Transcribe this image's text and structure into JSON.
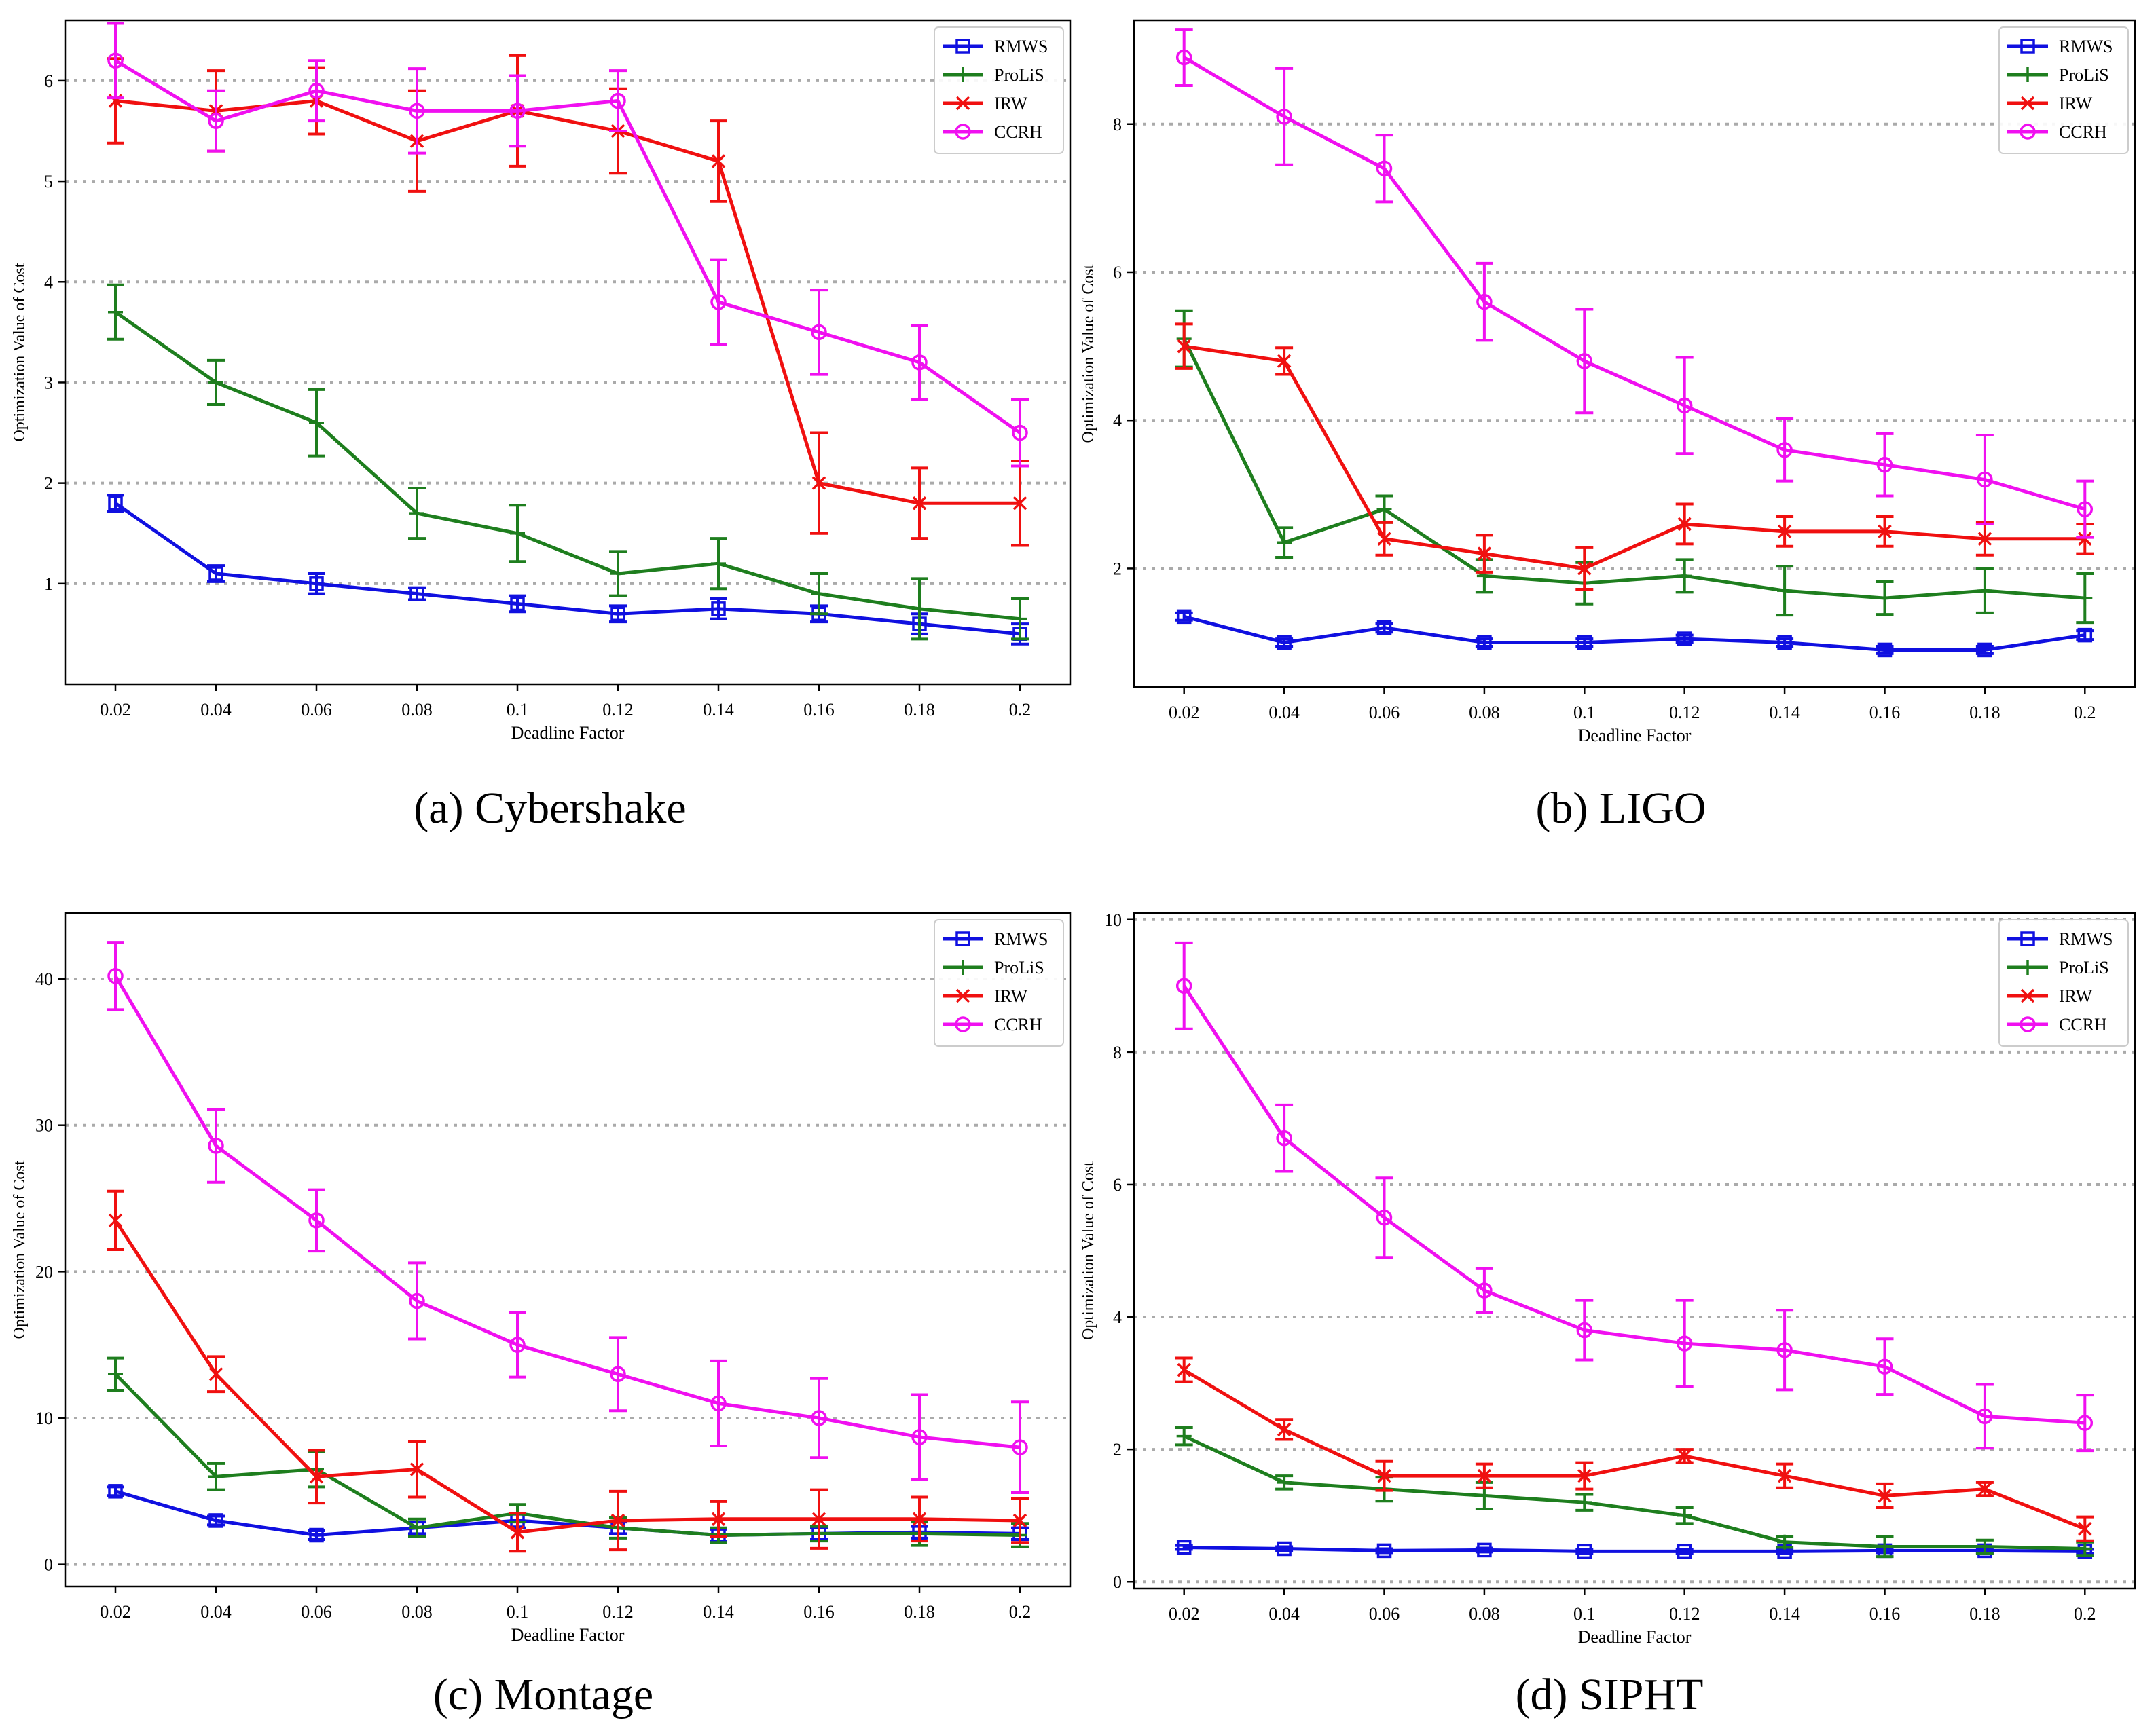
{
  "colors": {
    "RMWS": "#1010e0",
    "ProLiS": "#1e7e1e",
    "IRW": "#f01010",
    "CCRH": "#f010f0",
    "grid": "#aaaaaa",
    "axis": "#000000"
  },
  "chart_data": [
    {
      "type": "line",
      "panel_letter": "(a)",
      "panel_name": "Cybershake",
      "xlabel": "Deadline Factor",
      "ylabel": "Optimization Value of Cost",
      "xlim": [
        0.01,
        0.21
      ],
      "ylim": [
        0.0,
        6.6
      ],
      "grid": "y, dotted",
      "legend": "top-right",
      "categories": [
        0.02,
        0.04,
        0.06,
        0.08,
        0.1,
        0.12,
        0.14,
        0.16,
        0.18,
        0.2
      ],
      "x_tick_labels": [
        "0.02",
        "0.04",
        "0.06",
        "0.08",
        "0.1",
        "0.12",
        "0.14",
        "0.16",
        "0.18",
        "0.2"
      ],
      "yticks": [
        1,
        2,
        3,
        4,
        5,
        6
      ],
      "y_tick_labels": [
        "1",
        "2",
        "3",
        "4",
        "5",
        "6"
      ],
      "series": [
        {
          "name": "RMWS",
          "marker": "square",
          "values": [
            1.8,
            1.1,
            1.0,
            0.9,
            0.8,
            0.7,
            0.75,
            0.7,
            0.6,
            0.5
          ],
          "errors": [
            0.08,
            0.08,
            0.1,
            0.06,
            0.08,
            0.08,
            0.1,
            0.08,
            0.1,
            0.1
          ]
        },
        {
          "name": "ProLiS",
          "marker": "plus",
          "values": [
            3.7,
            3.0,
            2.6,
            1.7,
            1.5,
            1.1,
            1.2,
            0.9,
            0.75,
            0.65
          ],
          "errors": [
            0.27,
            0.22,
            0.33,
            0.25,
            0.28,
            0.22,
            0.25,
            0.2,
            0.3,
            0.2
          ]
        },
        {
          "name": "IRW",
          "marker": "x",
          "values": [
            5.8,
            5.7,
            5.8,
            5.4,
            5.7,
            5.5,
            5.2,
            2.0,
            1.8,
            1.8
          ],
          "errors": [
            0.42,
            0.4,
            0.33,
            0.5,
            0.55,
            0.42,
            0.4,
            0.5,
            0.35,
            0.42
          ]
        },
        {
          "name": "CCRH",
          "marker": "circle",
          "values": [
            6.2,
            5.6,
            5.9,
            5.7,
            5.7,
            5.8,
            3.8,
            3.5,
            3.2,
            2.5
          ],
          "errors": [
            0.37,
            0.3,
            0.3,
            0.42,
            0.35,
            0.3,
            0.42,
            0.42,
            0.37,
            0.33
          ]
        }
      ]
    },
    {
      "type": "line",
      "panel_letter": "(b)",
      "panel_name": "LIGO",
      "xlabel": "Deadline Factor",
      "ylabel": "Optimization Value of Cost",
      "xlim": [
        0.01,
        0.21
      ],
      "ylim": [
        0.4,
        9.4
      ],
      "grid": "y, dotted",
      "legend": "top-right",
      "categories": [
        0.02,
        0.04,
        0.06,
        0.08,
        0.1,
        0.12,
        0.14,
        0.16,
        0.18,
        0.2
      ],
      "x_tick_labels": [
        "0.02",
        "0.04",
        "0.06",
        "0.08",
        "0.1",
        "0.12",
        "0.14",
        "0.16",
        "0.18",
        "0.2"
      ],
      "yticks": [
        2,
        4,
        6,
        8
      ],
      "y_tick_labels": [
        "2",
        "4",
        "6",
        "8"
      ],
      "series": [
        {
          "name": "RMWS",
          "marker": "square",
          "values": [
            1.35,
            1.0,
            1.2,
            1.0,
            1.0,
            1.05,
            1.0,
            0.9,
            0.9,
            1.1
          ],
          "errors": [
            0.05,
            0.05,
            0.06,
            0.05,
            0.05,
            0.05,
            0.05,
            0.05,
            0.05,
            0.06
          ]
        },
        {
          "name": "ProLiS",
          "marker": "plus",
          "values": [
            5.1,
            2.35,
            2.8,
            1.9,
            1.8,
            1.9,
            1.7,
            1.6,
            1.7,
            1.6
          ],
          "errors": [
            0.38,
            0.2,
            0.18,
            0.22,
            0.28,
            0.22,
            0.33,
            0.22,
            0.3,
            0.33
          ]
        },
        {
          "name": "IRW",
          "marker": "x",
          "values": [
            5.0,
            4.8,
            2.4,
            2.2,
            2.0,
            2.6,
            2.5,
            2.5,
            2.4,
            2.4
          ],
          "errors": [
            0.3,
            0.18,
            0.22,
            0.25,
            0.28,
            0.27,
            0.2,
            0.2,
            0.22,
            0.2
          ]
        },
        {
          "name": "CCRH",
          "marker": "circle",
          "values": [
            8.9,
            8.1,
            7.4,
            5.6,
            4.8,
            4.2,
            3.6,
            3.4,
            3.2,
            2.8
          ],
          "errors": [
            0.38,
            0.65,
            0.45,
            0.52,
            0.7,
            0.65,
            0.42,
            0.42,
            0.6,
            0.38
          ]
        }
      ]
    },
    {
      "type": "line",
      "panel_letter": "(c)",
      "panel_name": "Montage",
      "xlabel": "Deadline Factor",
      "ylabel": "Optimization Value of Cost",
      "xlim": [
        0.01,
        0.21
      ],
      "ylim": [
        -1.5,
        44.5
      ],
      "grid": "y, dotted",
      "legend": "top-right",
      "categories": [
        0.02,
        0.04,
        0.06,
        0.08,
        0.1,
        0.12,
        0.14,
        0.16,
        0.18,
        0.2
      ],
      "x_tick_labels": [
        "0.02",
        "0.04",
        "0.06",
        "0.08",
        "0.1",
        "0.12",
        "0.14",
        "0.16",
        "0.18",
        "0.2"
      ],
      "yticks": [
        0,
        10,
        20,
        30,
        40
      ],
      "y_tick_labels": [
        "0",
        "10",
        "20",
        "30",
        "40"
      ],
      "series": [
        {
          "name": "RMWS",
          "marker": "square",
          "values": [
            5.0,
            3.0,
            2.0,
            2.5,
            3.0,
            2.5,
            2.0,
            2.1,
            2.2,
            2.1
          ],
          "errors": [
            0.3,
            0.3,
            0.3,
            0.4,
            0.5,
            0.4,
            0.4,
            0.4,
            0.4,
            0.4
          ]
        },
        {
          "name": "ProLiS",
          "marker": "plus",
          "values": [
            13.0,
            6.0,
            6.5,
            2.5,
            3.5,
            2.5,
            2.0,
            2.1,
            2.1,
            2.0
          ],
          "errors": [
            1.1,
            0.9,
            1.2,
            0.6,
            0.6,
            0.7,
            0.5,
            0.5,
            0.8,
            0.8
          ]
        },
        {
          "name": "IRW",
          "marker": "x",
          "values": [
            23.5,
            13.0,
            6.0,
            6.5,
            2.2,
            3.0,
            3.1,
            3.1,
            3.1,
            3.0
          ],
          "errors": [
            2.0,
            1.2,
            1.8,
            1.9,
            1.3,
            2.0,
            1.2,
            2.0,
            1.5,
            1.5
          ]
        },
        {
          "name": "CCRH",
          "marker": "circle",
          "values": [
            40.2,
            28.6,
            23.5,
            18.0,
            15.0,
            13.0,
            11.0,
            10.0,
            8.7,
            8.0
          ],
          "errors": [
            2.3,
            2.5,
            2.1,
            2.6,
            2.2,
            2.5,
            2.9,
            2.7,
            2.9,
            3.1
          ]
        }
      ]
    },
    {
      "type": "line",
      "panel_letter": "(d)",
      "panel_name": "SIPHT",
      "xlabel": "Deadline Factor",
      "ylabel": "Optimization Value of Cost",
      "xlim": [
        0.01,
        0.21
      ],
      "ylim": [
        -0.1,
        10.1
      ],
      "grid": "y, dotted",
      "legend": "top-right",
      "categories": [
        0.02,
        0.04,
        0.06,
        0.08,
        0.1,
        0.12,
        0.14,
        0.16,
        0.18,
        0.2
      ],
      "x_tick_labels": [
        "0.02",
        "0.04",
        "0.06",
        "0.08",
        "0.1",
        "0.12",
        "0.14",
        "0.16",
        "0.18",
        "0.2"
      ],
      "yticks": [
        0,
        2,
        4,
        6,
        8,
        10
      ],
      "y_tick_labels": [
        "0",
        "2",
        "4",
        "6",
        "8",
        "10"
      ],
      "series": [
        {
          "name": "RMWS",
          "marker": "square",
          "values": [
            0.52,
            0.5,
            0.47,
            0.48,
            0.46,
            0.46,
            0.46,
            0.47,
            0.47,
            0.46
          ],
          "errors": [
            0.03,
            0.03,
            0.03,
            0.03,
            0.03,
            0.03,
            0.03,
            0.03,
            0.03,
            0.03
          ]
        },
        {
          "name": "ProLiS",
          "marker": "plus",
          "values": [
            2.2,
            1.5,
            1.4,
            1.3,
            1.2,
            1.0,
            0.6,
            0.53,
            0.53,
            0.5
          ],
          "errors": [
            0.13,
            0.1,
            0.18,
            0.2,
            0.12,
            0.12,
            0.08,
            0.15,
            0.1,
            0.1
          ]
        },
        {
          "name": "IRW",
          "marker": "x",
          "values": [
            3.2,
            2.3,
            1.6,
            1.6,
            1.6,
            1.9,
            1.6,
            1.3,
            1.4,
            0.8
          ],
          "errors": [
            0.18,
            0.15,
            0.22,
            0.18,
            0.2,
            0.1,
            0.18,
            0.18,
            0.1,
            0.18
          ]
        },
        {
          "name": "CCRH",
          "marker": "circle",
          "values": [
            9.0,
            6.7,
            5.5,
            4.4,
            3.8,
            3.6,
            3.5,
            3.25,
            2.5,
            2.4
          ],
          "errors": [
            0.65,
            0.5,
            0.6,
            0.33,
            0.45,
            0.65,
            0.6,
            0.42,
            0.48,
            0.42
          ]
        }
      ]
    }
  ]
}
